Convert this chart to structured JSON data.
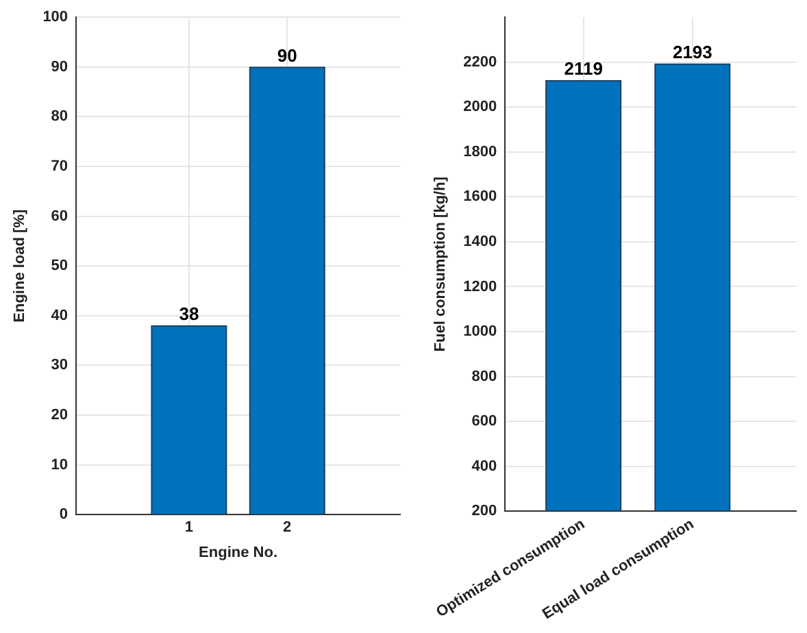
{
  "chart_data": [
    {
      "type": "bar",
      "categories": [
        "1",
        "2"
      ],
      "values": [
        38,
        90
      ],
      "color": "#0072bd",
      "xlabel": "Engine No.",
      "ylabel": "Engine load [%]",
      "ylim": [
        0,
        100
      ],
      "yticks": [
        0,
        10,
        20,
        30,
        40,
        50,
        60,
        70,
        80,
        90,
        100
      ],
      "grid": true,
      "data_labels": true
    },
    {
      "type": "bar",
      "categories": [
        "Optimized consumption",
        "Equal load consumption"
      ],
      "values": [
        2119,
        2193
      ],
      "color": "#0072bd",
      "ylabel": "Fuel consumption [kg/h]",
      "ylim": [
        200,
        2400
      ],
      "yticks": [
        200,
        400,
        600,
        800,
        1000,
        1200,
        1400,
        1600,
        1800,
        2000,
        2200
      ],
      "grid": true,
      "data_labels": true
    }
  ]
}
